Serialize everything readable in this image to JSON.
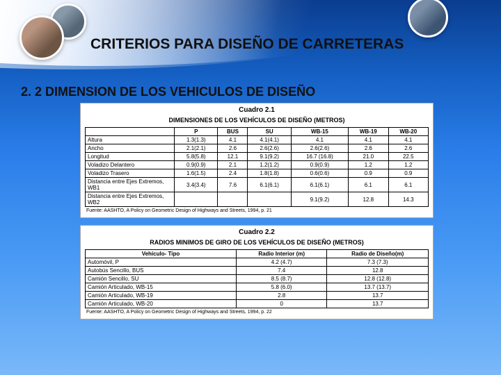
{
  "header": {
    "title": "CRITERIOS PARA DISEÑO DE CARRETERAS",
    "subtitle": "2. 2 DIMENSION DE LOS VEHICULOS DE DISEÑO"
  },
  "table1": {
    "cuadro": "Cuadro 2.1",
    "title": "DIMENSIONES DE LOS VEHÍCULOS DE DISEÑO (METROS)",
    "columns": [
      "",
      "P",
      "BUS",
      "SU",
      "WB-15",
      "WB-19",
      "WB-20"
    ],
    "rows": [
      [
        "Altura",
        "1.3(1.3)",
        "4.1",
        "4.1(4.1)",
        "4.1",
        "4.1",
        "4.1"
      ],
      [
        "Ancho",
        "2.1(2.1)",
        "2.6",
        "2.6(2.6)",
        "2.6(2.6)",
        "2.6",
        "2.6"
      ],
      [
        "Longitud",
        "5.8(5.8)",
        "12.1",
        "9.1(9.2)",
        "16.7 (16.8)",
        "21.0",
        "22.5"
      ],
      [
        "Voladizo Delantero",
        "0.9(0.9)",
        "2.1",
        "1.2(1.2)",
        "0.9(0.9)",
        "1.2",
        "1.2"
      ],
      [
        "Voladizo Trasero",
        "1.6(1.5)",
        "2.4",
        "1.8(1.8)",
        "0.6(0.6)",
        "0.9",
        "0.9"
      ],
      [
        "Distancia entre Ejes Extremos, WB1",
        "3.4(3.4)",
        "7.6",
        "6.1(6.1)",
        "6.1(6.1)",
        "6.1",
        "6.1"
      ],
      [
        "Distancia entre Ejes Extremos, WB2",
        "",
        "",
        "",
        "9.1(9.2)",
        "12.8",
        "14.3"
      ]
    ],
    "fuente": "Fuente: AASHTO, A Policy on Geometric Design of Highways and Streets, 1994, p. 21"
  },
  "table2": {
    "cuadro": "Cuadro 2.2",
    "title": "RADIOS MINIMOS DE GIRO DE LOS VEHÍCULOS DE DISEÑO (METROS)",
    "columns": [
      "Vehículo- Tipo",
      "Radio Interior (m)",
      "Radio de Diseño(m)"
    ],
    "rows": [
      [
        "Automóvil, P",
        "4.2 (4.7)",
        "7.3 (7.3)"
      ],
      [
        "Autobús Sencillo, BUS",
        "7.4",
        "12.8"
      ],
      [
        "Camión Sencillo, SU",
        "8.5 (8.7)",
        "12.8 (12.8)"
      ],
      [
        "Camión Articulado, WB-15",
        "5.8 (6.0)",
        "13.7 (13.7)"
      ],
      [
        "Camión Articulado, WB-19",
        "2.8",
        "13.7"
      ],
      [
        "Camión Articulado, WB-20",
        "0",
        "13.7"
      ]
    ],
    "fuente": "Fuente: AASHTO, A Policy on Geometric Design of Highways and Streets, 1994, p. 22"
  }
}
